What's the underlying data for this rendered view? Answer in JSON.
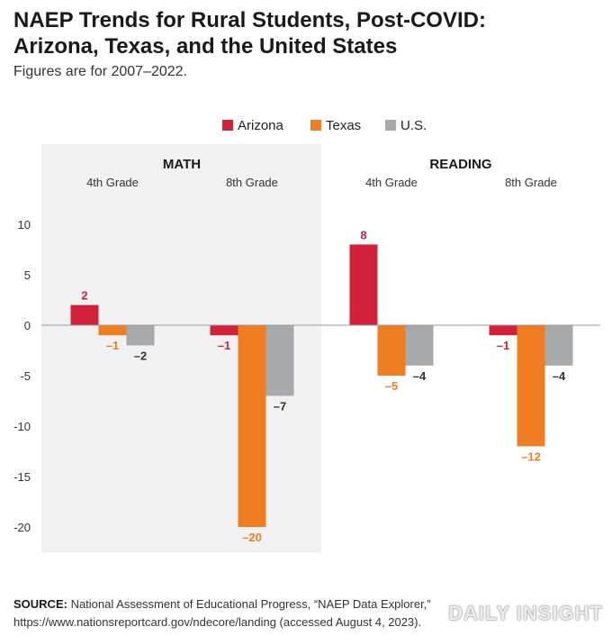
{
  "header": {
    "title_line1": "NAEP Trends for Rural Students, Post-COVID:",
    "title_line2": "Arizona, Texas, and the United States",
    "subtitle": "Figures are for 2007–2022."
  },
  "colors": {
    "arizona": "#d0223a",
    "texas": "#ef7d22",
    "us": "#a7a9ac",
    "math_panel_bg": "#f1f1f1",
    "zero_line": "#9a9a9a"
  },
  "chart_data": {
    "type": "bar",
    "title": "NAEP Trends for Rural Students, Post-COVID: Arizona, Texas, and the United States",
    "subtitle": "Figures are for 2007–2022.",
    "groups": [
      {
        "label": "MATH",
        "subcategories": [
          "4th Grade",
          "8th Grade"
        ],
        "shaded": true
      },
      {
        "label": "READING",
        "subcategories": [
          "4th Grade",
          "8th Grade"
        ],
        "shaded": false
      }
    ],
    "categories": [
      "MATH 4th Grade",
      "MATH 8th Grade",
      "READING 4th Grade",
      "READING 8th Grade"
    ],
    "series": [
      {
        "name": "Arizona",
        "color": "#d0223a",
        "values": [
          2,
          -1,
          8,
          -1
        ],
        "labels": [
          "2",
          "–1",
          "8",
          "–1"
        ]
      },
      {
        "name": "Texas",
        "color": "#ef7d22",
        "values": [
          -1,
          -20,
          -5,
          -12
        ],
        "labels": [
          "–1",
          "–20",
          "–5",
          "–12"
        ]
      },
      {
        "name": "U.S.",
        "color": "#a7a9ac",
        "values": [
          -2,
          -7,
          -4,
          -4
        ],
        "labels": [
          "–2",
          "–7",
          "–4",
          "–4"
        ]
      }
    ],
    "yticks": [
      10,
      5,
      0,
      -5,
      -10,
      -15,
      -20
    ],
    "ytick_labels": [
      "10",
      "5",
      "0",
      "-5",
      "-10",
      "-15",
      "-20"
    ],
    "ylim": [
      -22,
      10
    ],
    "legend_position": "top-center",
    "grid": false
  },
  "footer": {
    "source_label": "SOURCE:",
    "source_text": " National Assessment of Educational Progress, “NAEP Data Explorer,” https://www.nationsreportcard.gov/ndecore/landing (accessed August 4, 2023).",
    "watermark": "DAILY INSIGHT"
  }
}
